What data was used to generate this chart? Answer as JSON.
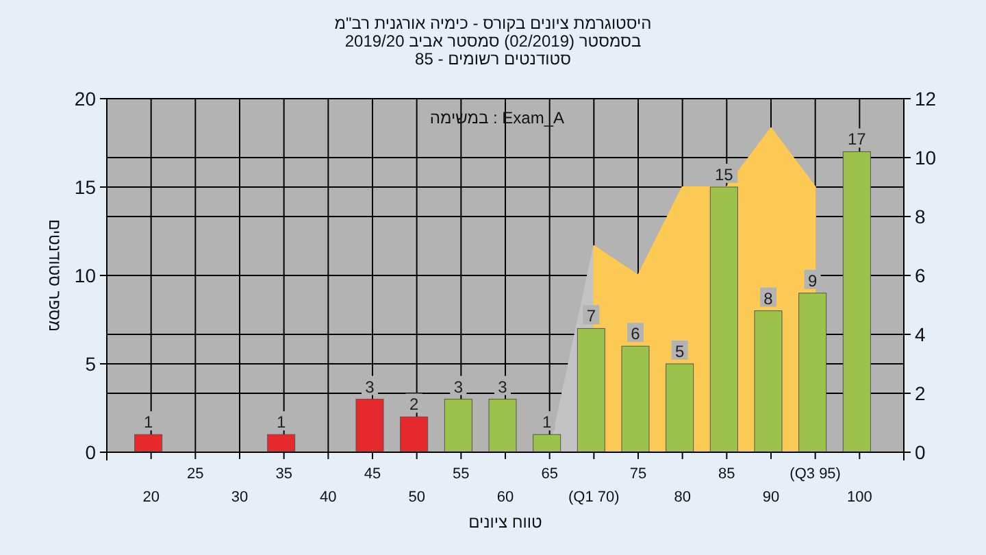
{
  "chart_data": {
    "type": "bar",
    "title": "היסטוגרמת ציונים בקורס - כימיה אורגנית רב\"מ",
    "subtitle": "בסמסטר (02/2019) סמסטר אביב 2019/20\nסטודנטים רשומים - 85",
    "xlabel": "טווח ציונים",
    "ylabel": "מספר סטודנטים",
    "annotations": [
      "במשימה : Exam_A"
    ],
    "categories": [
      "20",
      "25",
      "30",
      "35",
      "40",
      "45",
      "50",
      "55",
      "60",
      "65",
      "(Q1 70)",
      "75",
      "80",
      "85",
      "90",
      "(Q3 95)",
      "100"
    ],
    "series": [
      {
        "type": "area",
        "axis": "y2",
        "color": "#c3c3c3",
        "values": [
          null,
          null,
          null,
          null,
          null,
          null,
          null,
          null,
          null,
          0,
          7,
          6,
          9,
          9,
          11,
          9,
          null
        ]
      },
      {
        "type": "area",
        "axis": "y2",
        "color": "#fdc955",
        "values": [
          null,
          null,
          null,
          null,
          null,
          null,
          null,
          null,
          null,
          null,
          7,
          6,
          9,
          9,
          11,
          9,
          null
        ]
      },
      {
        "colors": [
          "#e52a2e",
          "#e52a2e",
          "#e52a2e",
          "#e52a2e",
          "#e52a2e",
          "#e52a2e",
          "#e52a2e",
          "#9cc24b",
          "#9cc24b",
          "#9cc24b",
          "#9cc24b",
          "#9cc24b",
          "#9cc24b",
          "#9cc24b",
          "#9cc24b",
          "#9cc24b",
          "#9cc24b"
        ],
        "values": [
          1,
          0,
          0,
          1,
          0,
          3,
          2,
          3,
          3,
          1,
          7,
          6,
          5,
          15,
          8,
          9,
          17
        ],
        "value_labels": [
          "1",
          null,
          null,
          "1",
          null,
          "3",
          "2",
          "3",
          "3",
          "1",
          "7",
          "6",
          "5",
          "15",
          "8",
          "9",
          "17"
        ]
      }
    ],
    "ylim": [
      0,
      20
    ],
    "yticks": [
      0,
      5,
      10,
      15,
      20
    ],
    "y2lim": [
      0,
      12
    ],
    "y2ticks": [
      0,
      2,
      4,
      6,
      8,
      10,
      12
    ],
    "grid": true
  }
}
